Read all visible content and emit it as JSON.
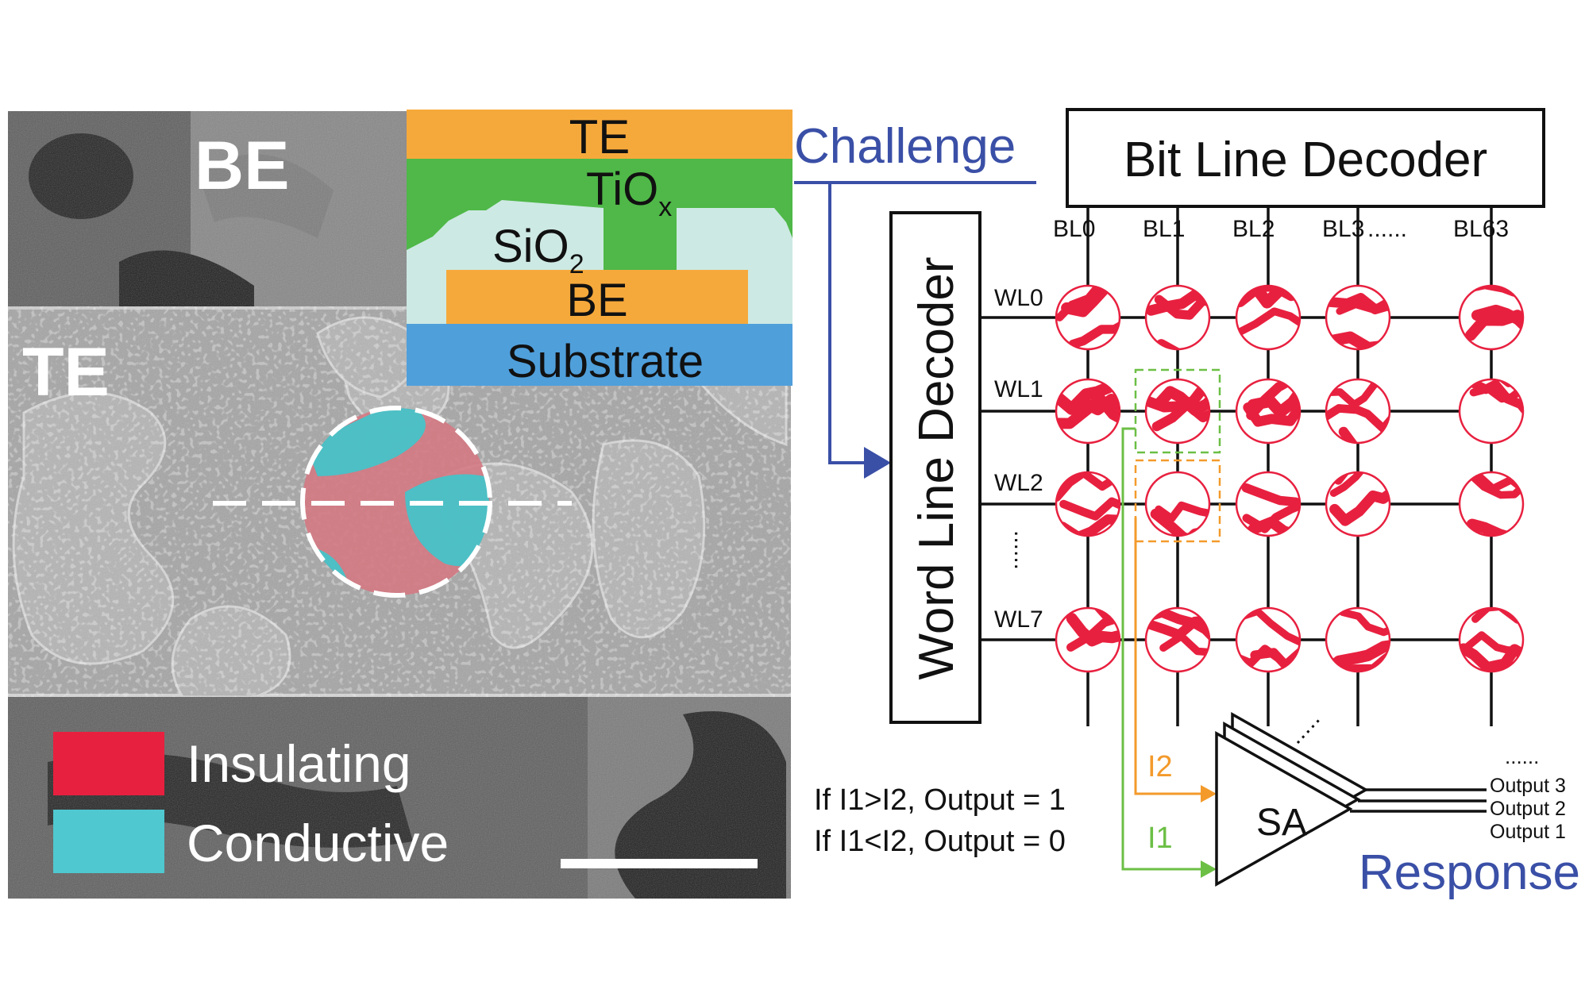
{
  "sem_panel": {
    "label_be": "BE",
    "label_te": "TE",
    "colors": {
      "insulating": "#e8203f",
      "conductive": "#4fc8d0",
      "sem_bg": "#8d8d8d"
    }
  },
  "stack": {
    "layers": {
      "te": "TE",
      "tiox": "TiO",
      "tiox_sub": "x",
      "sio2": "SiO",
      "sio2_sub": "2",
      "be": "BE",
      "substrate": "Substrate"
    },
    "colors": {
      "te": "#f6a93b",
      "tiox": "#4fb848",
      "sio2": "#cde9e3",
      "be": "#f6a93b",
      "substrate": "#4f9fdb"
    }
  },
  "legend": {
    "insulating": "Insulating",
    "conductive": "Conductive"
  },
  "array": {
    "challenge_label": "Challenge",
    "response_label": "Response",
    "bit_line_decoder": "Bit Line Decoder",
    "word_line_decoder": "Word Line Decoder",
    "bit_lines": [
      "BL0",
      "BL1",
      "BL2",
      "BL3",
      "BL63"
    ],
    "bit_line_ellipsis": "......",
    "word_lines": [
      "WL0",
      "WL1",
      "WL2",
      "WL7"
    ],
    "word_line_ellipsis": "......",
    "current_i1": "I1",
    "current_i2": "I2",
    "sense_amp": "SA",
    "outputs": [
      "Output 3",
      "Output 2",
      "Output 1"
    ],
    "output_ellipsis": "......",
    "rule_1": "If I1>I2, Output = 1",
    "rule_2": "If I1<I2, Output = 0",
    "colors": {
      "accent_blue": "#3a4fa6",
      "i1_green": "#6cbf45",
      "i2_orange": "#f39a2b",
      "cell_red": "#e8203f"
    }
  }
}
